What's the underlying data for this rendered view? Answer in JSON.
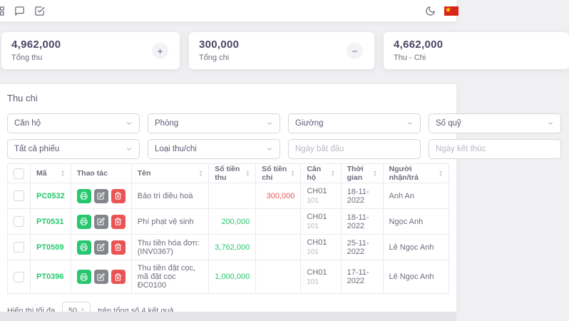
{
  "topbar": {
    "icons_left": [
      "grid-icon",
      "message-square-icon",
      "check-square-icon"
    ],
    "icons_right": [
      "moon-icon",
      "vietnam-flag-icon"
    ]
  },
  "summary_cards": [
    {
      "value": "4,962,000",
      "label": "Tổng thu",
      "action_icon": "plus-icon",
      "action_symbol": "+"
    },
    {
      "value": "300,000",
      "label": "Tổng chi",
      "action_icon": "minus-icon",
      "action_symbol": "−"
    },
    {
      "value": "4,662,000",
      "label": "Thu - Chi",
      "action_icon": null,
      "action_symbol": ""
    }
  ],
  "section": {
    "title": "Thu chi"
  },
  "filters": {
    "row1": [
      {
        "label": "Căn hộ",
        "type": "select"
      },
      {
        "label": "Phòng",
        "type": "select"
      },
      {
        "label": "Giường",
        "type": "select"
      },
      {
        "label": "Số quỹ",
        "type": "select"
      }
    ],
    "row2": [
      {
        "label": "Tất cả phiếu",
        "type": "select"
      },
      {
        "label": "Loại thu/chi",
        "type": "select"
      },
      {
        "placeholder": "Ngày bắt đầu",
        "type": "date"
      },
      {
        "placeholder": "Ngày kết thúc",
        "type": "date"
      }
    ]
  },
  "table": {
    "columns": [
      {
        "label": ""
      },
      {
        "label": "Mã"
      },
      {
        "label": "Thao tác"
      },
      {
        "label": "Tên"
      },
      {
        "label": "Số tiền thu"
      },
      {
        "label": "Số tiền chi"
      },
      {
        "label": "Căn hộ"
      },
      {
        "label": "Thời gian"
      },
      {
        "label": "Người nhận/trả"
      }
    ],
    "action_icons": [
      "printer-icon",
      "edit-icon",
      "trash-icon"
    ],
    "rows": [
      {
        "code": "PC0532",
        "name": "Bảo trì điều hoà",
        "thu": "",
        "chi": "300,000",
        "canho": "CH01",
        "room": "101",
        "time": "18-11-2022",
        "person": "Anh An"
      },
      {
        "code": "PT0531",
        "name": "Phí phạt vệ sinh",
        "thu": "200,000",
        "chi": "",
        "canho": "CH01",
        "room": "101",
        "time": "18-11-2022",
        "person": "Ngọc Anh"
      },
      {
        "code": "PT0509",
        "name": "Thu tiền hóa đơn: (INV0367)",
        "thu": "3,762,000",
        "chi": "",
        "canho": "CH01",
        "room": "101",
        "time": "25-11-2022",
        "person": "Lê Ngọc Anh"
      },
      {
        "code": "PT0396",
        "name": "Thu tiền đặt cọc, mã đặt cọc ĐC0100",
        "thu": "1,000,000",
        "chi": "",
        "canho": "CH01",
        "room": "101",
        "time": "17-11-2022",
        "person": "Lê Ngọc Anh"
      }
    ]
  },
  "pagination": {
    "prefix": "Hiển thị tối đa",
    "page_size": "50",
    "suffix": "trên tổng số 4 kết quả"
  },
  "colors": {
    "green": "#28c76f",
    "red": "#ea5455",
    "gray_button": "#82868b",
    "heading": "#5e5873",
    "text": "#6e6b7b",
    "muted": "#b9b9c3",
    "border": "#ebe9f1",
    "flag_red": "#da251d",
    "flag_star": "#ffde00"
  }
}
